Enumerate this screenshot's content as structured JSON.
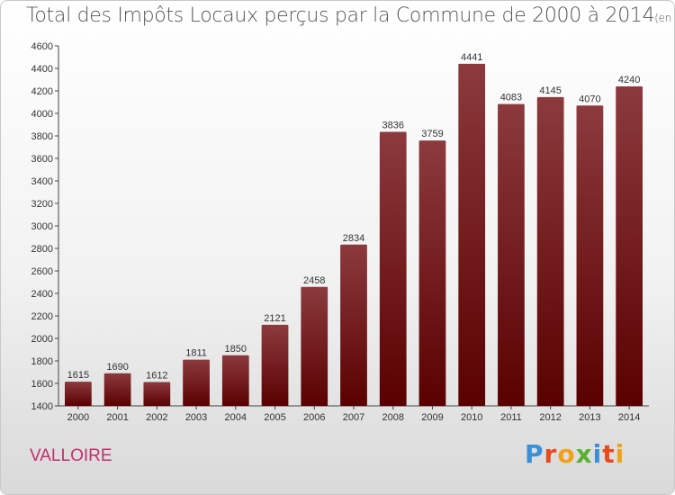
{
  "page": {
    "title": "Total des Impôts Locaux perçus par la Commune de 2000 à 2014",
    "title_unit": "(en milliers d'€)",
    "commune": "VALLOIRE",
    "logo_text": "Proxiti",
    "logo_colors": [
      "#3b8fd6",
      "#e8491d",
      "#f0a11b",
      "#5ab031",
      "#3b8fd6",
      "#e8491d",
      "#f0a11b"
    ]
  },
  "chart_data": {
    "type": "bar",
    "title": "Total des Impôts Locaux perçus par la Commune de 2000 à 2014",
    "xlabel": "",
    "ylabel": "",
    "categories": [
      "2000",
      "2001",
      "2002",
      "2003",
      "2004",
      "2005",
      "2006",
      "2007",
      "2008",
      "2009",
      "2010",
      "2011",
      "2012",
      "2013",
      "2014"
    ],
    "values": [
      1615,
      1690,
      1612,
      1811,
      1850,
      2121,
      2458,
      2834,
      3836,
      3759,
      4441,
      4083,
      4145,
      4070,
      4240
    ],
    "ylim": [
      1400,
      4600
    ],
    "yticks": [
      1400,
      1600,
      1800,
      2000,
      2200,
      2400,
      2600,
      2800,
      3000,
      3200,
      3400,
      3600,
      3800,
      4000,
      4200,
      4400,
      4600
    ],
    "grid": false,
    "bar_color_top": "#8c3a3e",
    "bar_color_bottom": "#5a0000"
  }
}
